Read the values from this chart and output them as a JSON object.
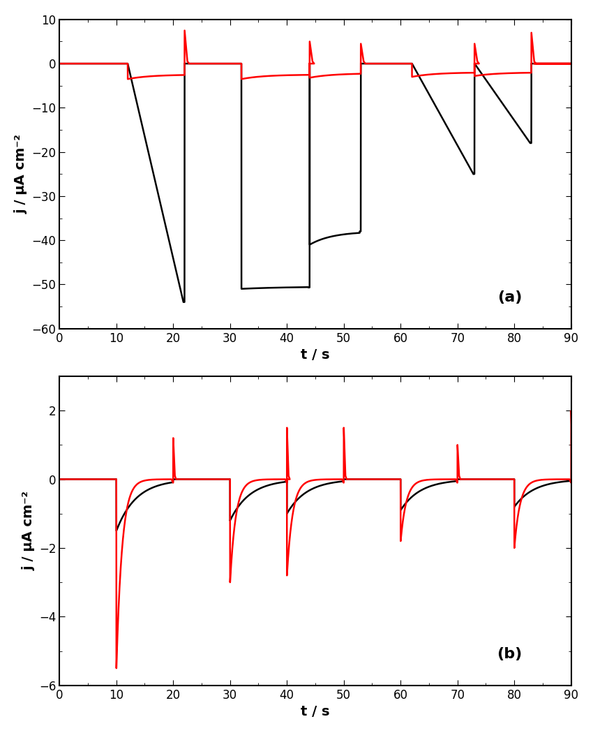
{
  "fig_width": 8.5,
  "fig_height": 10.5,
  "panel_a": {
    "label": "(a)",
    "xlabel": "t / s",
    "ylabel": "j / μA cm⁻²",
    "xlim": [
      0,
      90
    ],
    "ylim": [
      -60,
      10
    ],
    "xticks": [
      0,
      10,
      20,
      30,
      40,
      50,
      60,
      70,
      80,
      90
    ],
    "yticks": [
      -60,
      -50,
      -40,
      -30,
      -20,
      -10,
      0,
      10
    ]
  },
  "panel_b": {
    "label": "(b)",
    "xlabel": "t / s",
    "ylabel": "j / μA cm⁻²",
    "xlim": [
      0,
      90
    ],
    "ylim": [
      -6,
      3
    ],
    "xticks": [
      0,
      10,
      20,
      30,
      40,
      50,
      60,
      70,
      80,
      90
    ],
    "yticks": [
      -6,
      -4,
      -2,
      0,
      2
    ]
  },
  "line_black": "#000000",
  "line_red": "#ff0000",
  "line_width": 1.8
}
